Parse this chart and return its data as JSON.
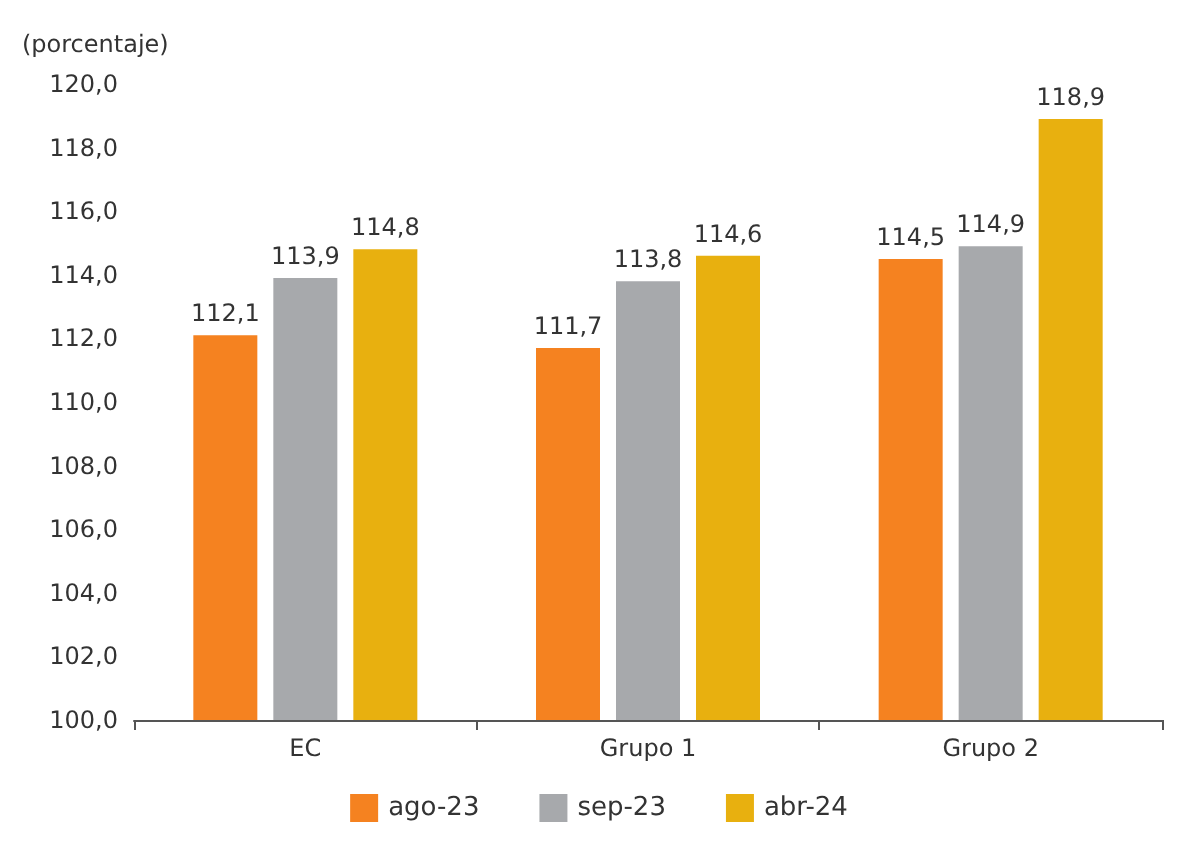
{
  "chart_data": {
    "type": "bar",
    "ylabel": "(porcentaje)",
    "categories": [
      "EC",
      "Grupo 1",
      "Grupo 2"
    ],
    "series": [
      {
        "name": "ago-23",
        "color": "#f58220",
        "values": [
          112.1,
          111.7,
          114.5
        ],
        "value_labels": [
          "112,1",
          "111,7",
          "114,5"
        ]
      },
      {
        "name": "sep-23",
        "color": "#a7a9ac",
        "values": [
          113.9,
          113.8,
          114.9
        ],
        "value_labels": [
          "113,9",
          "113,8",
          "114,9"
        ]
      },
      {
        "name": "abr-24",
        "color": "#e8b00f",
        "values": [
          114.8,
          114.6,
          118.9
        ],
        "value_labels": [
          "114,8",
          "114,6",
          "118,9"
        ]
      }
    ],
    "ylim": [
      100,
      120
    ],
    "yticks": [
      {
        "value": 100,
        "label": "100,0"
      },
      {
        "value": 102,
        "label": "102,0"
      },
      {
        "value": 104,
        "label": "104,0"
      },
      {
        "value": 106,
        "label": "106,0"
      },
      {
        "value": 108,
        "label": "108,0"
      },
      {
        "value": 110,
        "label": "110,0"
      },
      {
        "value": 112,
        "label": "112,0"
      },
      {
        "value": 114,
        "label": "114,0"
      },
      {
        "value": 116,
        "label": "116,0"
      },
      {
        "value": 118,
        "label": "118,0"
      },
      {
        "value": 120,
        "label": "120,0"
      }
    ],
    "grid": false,
    "legend": "bottom"
  }
}
